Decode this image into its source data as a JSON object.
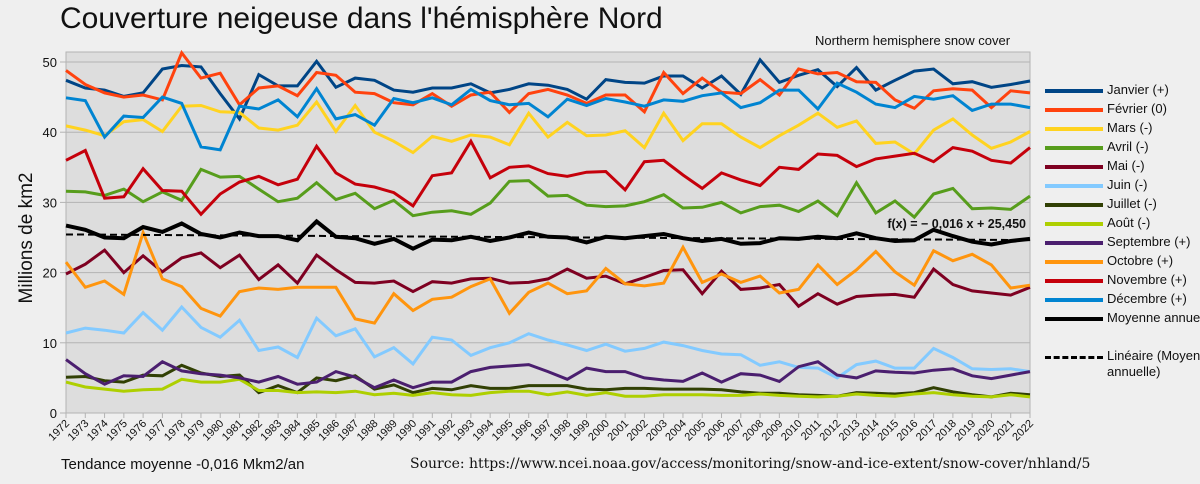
{
  "header": {
    "title": "Couverture neigeuse dans l'hémisphère Nord",
    "subtitle": "Northerm hemisphere snow cover"
  },
  "footer": {
    "note": "Tendance moyenne -0,016 Mkm2/an",
    "source": "Source: https://www.ncei.noaa.gov/access/monitoring/snow-and-ice-extent/snow-cover/nhland/5"
  },
  "chart_data": {
    "type": "line",
    "title": "Couverture neigeuse dans l'hémisphère Nord",
    "subtitle": "Northerm hemisphere snow cover",
    "xlabel": "",
    "ylabel": "Millions de km2",
    "ylim": [
      0,
      50
    ],
    "yticks": [
      0,
      10,
      20,
      30,
      40,
      50
    ],
    "grid": true,
    "legend_position": "right",
    "x": [
      1972,
      1973,
      1974,
      1975,
      1976,
      1977,
      1978,
      1979,
      1980,
      1981,
      1982,
      1983,
      1984,
      1985,
      1986,
      1987,
      1988,
      1989,
      1990,
      1991,
      1992,
      1993,
      1994,
      1995,
      1996,
      1997,
      1998,
      1999,
      2000,
      2001,
      2002,
      2003,
      2004,
      2005,
      2006,
      2007,
      2008,
      2009,
      2010,
      2011,
      2012,
      2013,
      2014,
      2015,
      2016,
      2017,
      2018,
      2019,
      2020,
      2021,
      2022
    ],
    "trendline": {
      "label": "f(x) = − 0,016 x + 25,450",
      "slope": -0.016,
      "intercept": 25.45
    },
    "series": [
      {
        "name": "Janvier (+)",
        "color": "#004586",
        "width": 3,
        "values": [
          47.4,
          46.3,
          46.0,
          45.1,
          45.6,
          49.0,
          49.5,
          49.3,
          45.5,
          41.9,
          48.2,
          46.6,
          46.6,
          50.1,
          46.4,
          47.7,
          47.4,
          46.0,
          45.7,
          46.3,
          46.3,
          46.9,
          45.6,
          46.1,
          46.9,
          46.7,
          46.1,
          44.7,
          47.5,
          47.1,
          47.0,
          48.0,
          48.0,
          46.3,
          48.0,
          45.4,
          50.3,
          47.1,
          48.1,
          48.9,
          46.5,
          49.2,
          46.0,
          47.4,
          48.7,
          49.0,
          46.9,
          47.2,
          46.4,
          46.8,
          47.3
        ]
      },
      {
        "name": "Février (0)",
        "color": "#ff420e",
        "width": 3,
        "values": [
          48.8,
          46.8,
          45.6,
          45.0,
          45.3,
          44.6,
          51.3,
          47.7,
          48.4,
          43.9,
          46.3,
          46.6,
          45.2,
          48.5,
          48.1,
          45.7,
          45.5,
          44.2,
          43.9,
          45.5,
          43.7,
          45.3,
          45.7,
          42.8,
          45.5,
          46.1,
          45.3,
          44.1,
          45.3,
          45.3,
          42.9,
          48.5,
          45.5,
          47.7,
          45.7,
          45.5,
          47.5,
          45.3,
          49.0,
          48.3,
          48.5,
          47.2,
          47.1,
          44.6,
          43.4,
          45.9,
          46.2,
          46.0,
          43.5,
          45.9,
          45.6
        ]
      },
      {
        "name": "Mars (-)",
        "color": "#ffd320",
        "width": 3,
        "values": [
          40.9,
          40.3,
          39.5,
          41.5,
          41.8,
          40.1,
          43.7,
          43.8,
          42.9,
          42.8,
          40.6,
          40.3,
          41.0,
          44.3,
          40.1,
          43.8,
          40.0,
          38.7,
          37.1,
          39.4,
          38.7,
          39.6,
          39.3,
          38.2,
          42.7,
          39.3,
          41.4,
          39.5,
          39.6,
          40.2,
          37.8,
          42.7,
          38.8,
          41.2,
          41.2,
          39.3,
          37.8,
          39.5,
          41.0,
          42.7,
          40.7,
          41.6,
          38.4,
          38.6,
          36.9,
          40.3,
          41.9,
          39.6,
          37.7,
          38.6,
          40.1
        ]
      },
      {
        "name": "Avril (-)",
        "color": "#579d1c",
        "width": 3,
        "values": [
          31.6,
          31.5,
          31.0,
          31.9,
          30.1,
          31.5,
          30.3,
          34.7,
          33.6,
          33.7,
          31.9,
          30.1,
          30.6,
          32.8,
          30.4,
          31.3,
          29.1,
          30.3,
          28.1,
          28.6,
          28.8,
          28.3,
          29.9,
          33.0,
          33.1,
          30.9,
          31.0,
          29.6,
          29.4,
          29.5,
          30.1,
          31.1,
          29.2,
          29.3,
          30.0,
          28.5,
          29.4,
          29.6,
          28.7,
          30.2,
          28.1,
          32.8,
          28.5,
          30.2,
          27.9,
          31.2,
          32.0,
          29.1,
          29.2,
          29.0,
          30.9
        ]
      },
      {
        "name": "Mai (-)",
        "color": "#7e0021",
        "width": 3,
        "values": [
          19.8,
          21.2,
          23.2,
          20.0,
          22.4,
          20.1,
          22.1,
          22.8,
          20.7,
          22.5,
          19.0,
          21.1,
          18.5,
          22.5,
          20.4,
          18.6,
          18.5,
          18.8,
          17.3,
          18.7,
          18.5,
          19.1,
          19.2,
          18.5,
          18.6,
          19.1,
          20.5,
          19.2,
          19.5,
          18.4,
          19.3,
          20.3,
          20.4,
          17.0,
          20.2,
          17.6,
          17.8,
          18.3,
          15.2,
          17.0,
          15.5,
          16.6,
          16.8,
          16.9,
          16.5,
          20.5,
          18.3,
          17.4,
          17.1,
          16.8,
          17.9
        ]
      },
      {
        "name": "Juin (-)",
        "color": "#83caff",
        "width": 3,
        "values": [
          11.4,
          12.1,
          11.8,
          11.4,
          14.3,
          11.8,
          15.1,
          12.2,
          10.8,
          13.2,
          8.9,
          9.4,
          7.9,
          13.5,
          11.0,
          12.0,
          8.0,
          9.3,
          7.0,
          10.8,
          10.4,
          8.2,
          9.3,
          10.0,
          11.3,
          10.4,
          9.7,
          8.9,
          9.8,
          8.8,
          9.2,
          10.1,
          9.6,
          8.9,
          8.4,
          8.3,
          6.8,
          7.3,
          6.5,
          6.4,
          5.0,
          6.9,
          7.4,
          6.4,
          6.4,
          9.2,
          7.9,
          6.3,
          6.2,
          6.3,
          5.9
        ]
      },
      {
        "name": "Juillet (-)",
        "color": "#314004",
        "width": 3,
        "values": [
          5.1,
          5.2,
          4.6,
          4.4,
          5.4,
          5.3,
          6.8,
          5.7,
          5.2,
          5.4,
          2.9,
          3.9,
          2.9,
          5.0,
          4.6,
          5.3,
          3.4,
          4.0,
          2.9,
          3.5,
          3.3,
          3.9,
          3.5,
          3.5,
          3.9,
          3.9,
          3.9,
          3.4,
          3.3,
          3.5,
          3.5,
          3.4,
          3.4,
          3.4,
          3.3,
          3.0,
          2.8,
          2.8,
          2.6,
          2.5,
          2.4,
          2.9,
          2.8,
          2.7,
          2.9,
          3.6,
          3.0,
          2.6,
          2.3,
          2.8,
          2.6
        ]
      },
      {
        "name": "Août (-)",
        "color": "#aecf00",
        "width": 3,
        "values": [
          4.4,
          3.7,
          3.4,
          3.1,
          3.3,
          3.4,
          4.8,
          4.4,
          4.4,
          4.8,
          3.2,
          3.2,
          2.9,
          3.0,
          2.9,
          3.1,
          2.6,
          2.8,
          2.5,
          2.9,
          2.6,
          2.5,
          2.9,
          3.1,
          3.1,
          2.6,
          3.0,
          2.5,
          2.9,
          2.4,
          2.4,
          2.6,
          2.6,
          2.6,
          2.5,
          2.5,
          2.7,
          2.5,
          2.4,
          2.3,
          2.4,
          2.7,
          2.5,
          2.4,
          2.7,
          2.9,
          2.6,
          2.4,
          2.3,
          2.6,
          2.3
        ]
      },
      {
        "name": "Septembre (+)",
        "color": "#4b1f6f",
        "width": 3,
        "values": [
          7.6,
          5.6,
          4.1,
          5.3,
          5.2,
          7.3,
          6.0,
          5.6,
          5.4,
          5.0,
          4.4,
          5.2,
          4.1,
          4.4,
          5.9,
          5.1,
          3.6,
          4.7,
          3.6,
          4.4,
          4.4,
          5.9,
          6.5,
          6.7,
          6.9,
          5.9,
          4.8,
          6.4,
          5.9,
          5.9,
          5.0,
          4.7,
          4.5,
          5.7,
          4.4,
          5.6,
          5.4,
          4.5,
          6.6,
          7.3,
          5.4,
          5.0,
          6.0,
          5.8,
          5.7,
          6.1,
          6.3,
          5.3,
          4.9,
          5.4,
          5.9
        ]
      },
      {
        "name": "Octobre (+)",
        "color": "#ff950e",
        "width": 3,
        "values": [
          21.5,
          17.9,
          18.8,
          16.9,
          25.7,
          19.1,
          18.0,
          14.9,
          13.8,
          17.3,
          17.8,
          17.6,
          17.9,
          17.9,
          17.9,
          13.4,
          12.8,
          17.0,
          14.6,
          16.2,
          16.5,
          18.0,
          19.1,
          14.2,
          17.2,
          18.5,
          17.0,
          17.4,
          20.6,
          18.4,
          18.1,
          18.5,
          23.6,
          18.6,
          19.8,
          18.6,
          19.5,
          17.1,
          17.6,
          21.1,
          18.3,
          20.4,
          23.0,
          20.1,
          18.2,
          23.1,
          21.7,
          22.6,
          21.1,
          17.8,
          18.2
        ]
      },
      {
        "name": "Novembre (+)",
        "color": "#c5000b",
        "width": 3,
        "values": [
          36.0,
          37.4,
          30.6,
          30.8,
          34.8,
          31.7,
          31.6,
          28.3,
          31.2,
          32.9,
          33.7,
          32.5,
          33.3,
          38.0,
          34.2,
          32.6,
          32.2,
          31.4,
          29.5,
          33.8,
          34.2,
          38.7,
          33.5,
          35.0,
          35.2,
          34.1,
          33.7,
          34.3,
          34.4,
          31.8,
          35.8,
          36.0,
          33.9,
          32.0,
          34.2,
          33.2,
          32.4,
          35.0,
          34.7,
          36.9,
          36.7,
          35.1,
          36.2,
          36.6,
          37.0,
          35.8,
          37.8,
          37.3,
          36.0,
          35.6,
          37.8
        ]
      },
      {
        "name": "Décembre (+)",
        "color": "#0084d1",
        "width": 3,
        "values": [
          44.9,
          44.5,
          39.3,
          42.3,
          42.1,
          45.0,
          44.1,
          37.9,
          37.5,
          43.7,
          43.3,
          44.6,
          42.2,
          46.2,
          41.9,
          42.5,
          41.0,
          44.8,
          44.2,
          44.9,
          43.9,
          46.1,
          44.5,
          43.9,
          44.1,
          42.2,
          44.7,
          43.8,
          44.8,
          44.3,
          43.7,
          44.6,
          44.4,
          45.2,
          45.6,
          43.5,
          44.2,
          46.0,
          46.0,
          43.3,
          47.0,
          45.7,
          44.0,
          43.5,
          45.1,
          44.7,
          45.2,
          43.1,
          44.0,
          44.0,
          43.5
        ]
      },
      {
        "name": "Moyenne annuelle",
        "color": "#000000",
        "width": 4,
        "values": [
          26.7,
          26.1,
          25.0,
          24.9,
          26.5,
          25.8,
          27.0,
          25.5,
          25.0,
          25.7,
          25.2,
          25.2,
          24.6,
          27.3,
          25.1,
          24.9,
          24.1,
          24.8,
          23.4,
          24.7,
          24.6,
          25.1,
          24.5,
          25.0,
          25.7,
          25.1,
          25.0,
          24.3,
          25.1,
          24.9,
          25.2,
          25.5,
          24.9,
          24.5,
          24.8,
          24.1,
          24.2,
          24.9,
          24.8,
          25.1,
          24.9,
          25.6,
          24.9,
          24.5,
          24.6,
          26.1,
          25.2,
          24.4,
          24.0,
          24.5,
          24.8
        ]
      },
      {
        "name": "Linéaire (Moyenne annuelle)",
        "color": "#000000",
        "width": 2,
        "dashed": true,
        "values": []
      }
    ]
  },
  "legend": {
    "items": [
      {
        "label": "Janvier (+)",
        "color": "#004586"
      },
      {
        "label": "Février (0)",
        "color": "#ff420e"
      },
      {
        "label": "Mars (-)",
        "color": "#ffd320"
      },
      {
        "label": "Avril (-)",
        "color": "#579d1c"
      },
      {
        "label": "Mai (-)",
        "color": "#7e0021"
      },
      {
        "label": "Juin (-)",
        "color": "#83caff"
      },
      {
        "label": "Juillet (-)",
        "color": "#314004"
      },
      {
        "label": "Août (-)",
        "color": "#aecf00"
      },
      {
        "label": "Septembre (+)",
        "color": "#4b1f6f"
      },
      {
        "label": "Octobre (+)",
        "color": "#ff950e"
      },
      {
        "label": "Novembre (+)",
        "color": "#c5000b"
      },
      {
        "label": "Décembre (+)",
        "color": "#0084d1"
      },
      {
        "label": "Moyenne annuelle",
        "color": "#000000"
      },
      {
        "label": "Linéaire (Moyenne annuelle)",
        "color": "#000000",
        "dashed": true
      }
    ]
  }
}
